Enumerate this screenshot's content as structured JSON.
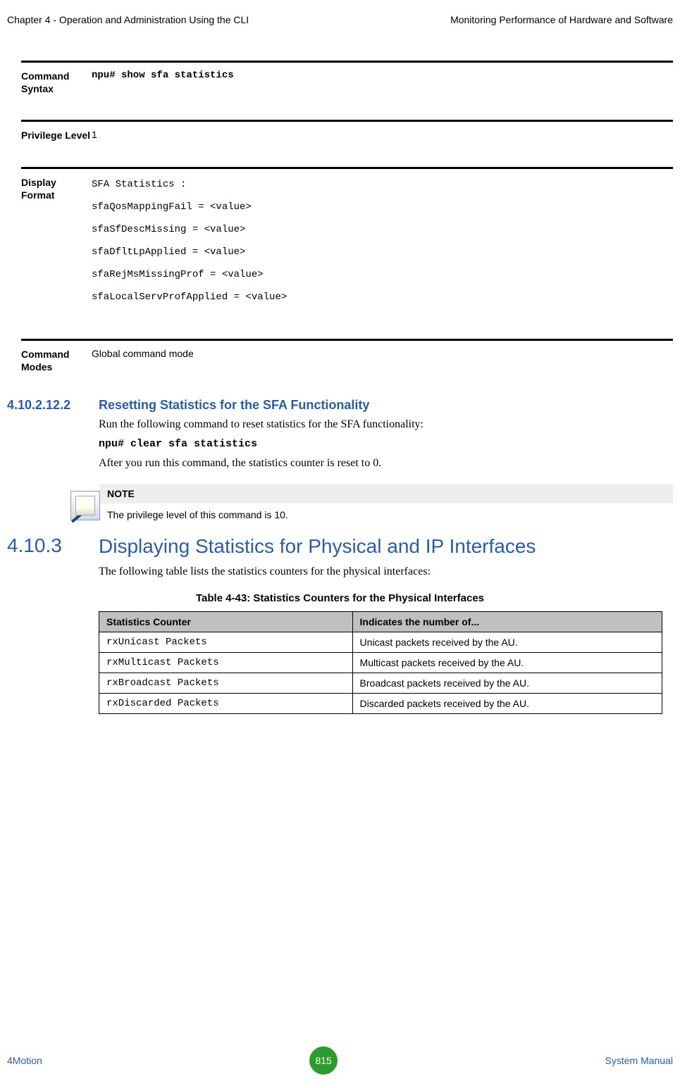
{
  "header": {
    "left": "Chapter 4 - Operation and Administration Using the CLI",
    "right": "Monitoring Performance of Hardware and Software"
  },
  "defs": {
    "syntax": {
      "label": "Command Syntax",
      "value": "npu# show sfa statistics"
    },
    "privilege": {
      "label": "Privilege Level",
      "value": "1"
    },
    "display": {
      "label": "Display Format",
      "lines": [
        "SFA Statistics :",
        "sfaQosMappingFail = <value>",
        "sfaSfDescMissing = <value>",
        "sfaDfltLpApplied = <value>",
        "sfaRejMsMissingProf = <value>",
        "sfaLocalServProfApplied = <value>"
      ]
    },
    "modes": {
      "label": "Command Modes",
      "value": "Global command mode"
    }
  },
  "subsection": {
    "num": "4.10.2.12.2",
    "title": "Resetting Statistics for the SFA Functionality",
    "p1": "Run the following command to reset statistics for the SFA functionality:",
    "cmd": "npu# clear sfa statistics",
    "p2": "After you run this command, the statistics counter is reset to 0."
  },
  "note": {
    "header": "NOTE",
    "body": "The privilege level of this command is 10."
  },
  "bigsection": {
    "num": "4.10.3",
    "title": "Displaying Statistics for Physical and IP Interfaces",
    "intro": "The following table lists the statistics counters for the physical interfaces:"
  },
  "table": {
    "caption": "Table 4-43: Statistics Counters for the Physical Interfaces",
    "columns": [
      "Statistics Counter",
      "Indicates the number of..."
    ],
    "rows": [
      [
        "rxUnicast Packets",
        "Unicast packets received by the AU."
      ],
      [
        "rxMulticast Packets",
        "Multicast packets received by the AU."
      ],
      [
        "rxBroadcast Packets",
        "Broadcast packets received by the AU."
      ],
      [
        "rxDiscarded Packets",
        "Discarded packets received by the AU."
      ]
    ]
  },
  "footer": {
    "left": "4Motion",
    "page": "815",
    "right": "System Manual"
  },
  "colors": {
    "accent": "#2a5caa",
    "page_circle_bg": "#2e9b2e",
    "table_header_bg": "#c0c0c0"
  }
}
